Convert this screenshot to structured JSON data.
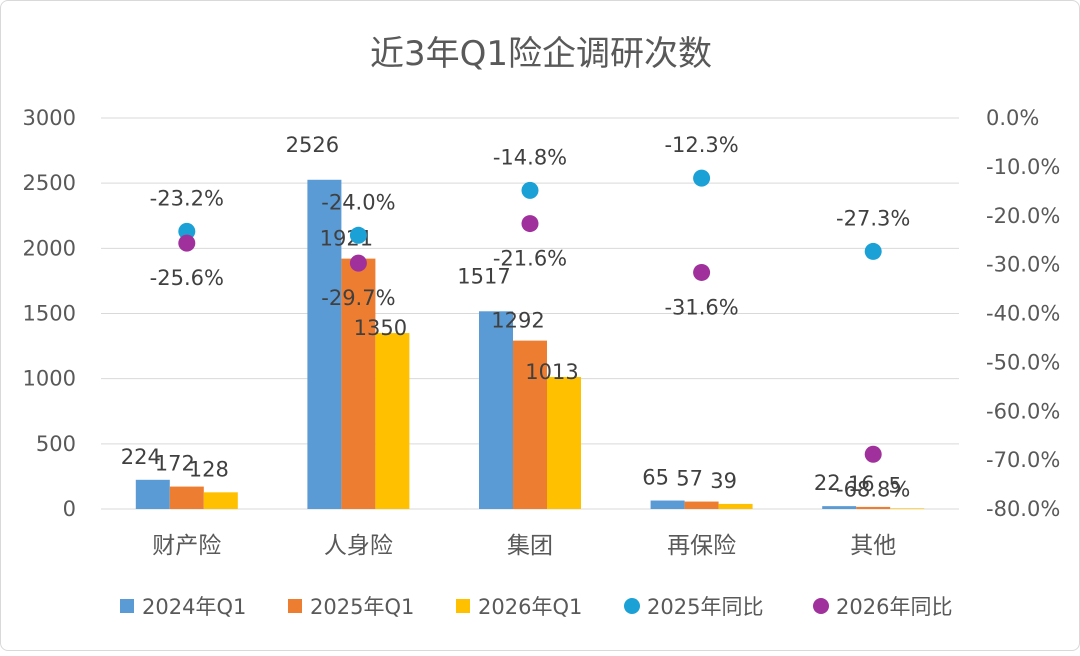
{
  "chart_data": {
    "type": "bar",
    "title": "近3年Q1险企调研次数",
    "categories": [
      "财产险",
      "人身险",
      "集团",
      "再保险",
      "其他"
    ],
    "series": [
      {
        "name": "2024年Q1",
        "kind": "bar",
        "axis": "left",
        "color": "#5b9bd5",
        "values": [
          224,
          2526,
          1517,
          65,
          22
        ]
      },
      {
        "name": "2025年Q1",
        "kind": "bar",
        "axis": "left",
        "color": "#ed7d31",
        "values": [
          172,
          1921,
          1292,
          57,
          16
        ]
      },
      {
        "name": "2026年Q1",
        "kind": "bar",
        "axis": "left",
        "color": "#ffc000",
        "values": [
          128,
          1350,
          1013,
          39,
          5
        ]
      },
      {
        "name": "2025年同比",
        "kind": "scatter",
        "axis": "right",
        "color": "#1ba1d6",
        "values": [
          -23.2,
          -24.0,
          -14.8,
          -12.3,
          -27.3
        ]
      },
      {
        "name": "2026年同比",
        "kind": "scatter",
        "axis": "right",
        "color": "#a0319c",
        "values": [
          -25.6,
          -29.7,
          -21.6,
          -31.6,
          -68.8
        ]
      }
    ],
    "bar_labels": [
      [
        "224",
        "2526",
        "1517",
        "65",
        "22"
      ],
      [
        "172",
        "1921",
        "1292",
        "57",
        "16"
      ],
      [
        "128",
        "1350",
        "1013",
        "39",
        "5"
      ]
    ],
    "point_labels": [
      [
        "-23.2%",
        "-24.0%",
        "-14.8%",
        "-12.3%",
        "-27.3%"
      ],
      [
        "-25.6%",
        "-29.7%",
        "-21.6%",
        "-31.6%",
        "-68.8%"
      ]
    ],
    "y_left": {
      "min": 0,
      "max": 3000,
      "ticks": [
        "0",
        "500",
        "1000",
        "1500",
        "2000",
        "2500",
        "3000"
      ]
    },
    "y_right": {
      "min": -80,
      "max": 0,
      "ticks": [
        "-80.0%",
        "-70.0%",
        "-60.0%",
        "-50.0%",
        "-40.0%",
        "-30.0%",
        "-20.0%",
        "-10.0%",
        "0.0%"
      ]
    },
    "grid": true,
    "legend": "bottom"
  }
}
